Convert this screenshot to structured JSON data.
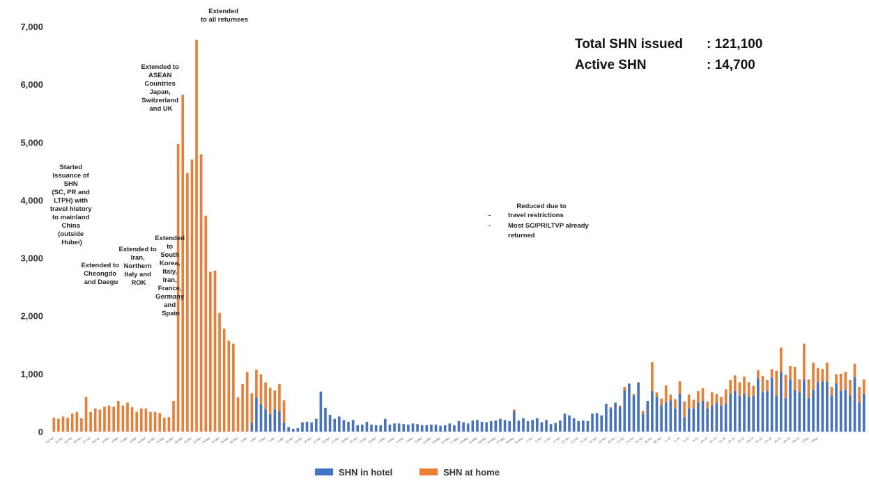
{
  "chart_data": {
    "type": "bar",
    "stacked": true,
    "ylim": [
      0,
      7000
    ],
    "yticks": [
      "0",
      "1,000",
      "2,000",
      "3,000",
      "4,000",
      "5,000",
      "6,000",
      "7,000"
    ],
    "grid": false,
    "legend_position": "bottom",
    "series": [
      {
        "name": "SHN in hotel",
        "color": "#4472c4",
        "values": [
          0,
          0,
          0,
          0,
          0,
          0,
          0,
          0,
          0,
          0,
          0,
          0,
          0,
          0,
          0,
          0,
          0,
          0,
          0,
          0,
          0,
          0,
          0,
          0,
          0,
          0,
          0,
          0,
          0,
          0,
          0,
          0,
          0,
          0,
          0,
          0,
          0,
          0,
          0,
          0,
          0,
          0,
          0,
          150,
          590,
          470,
          390,
          300,
          380,
          350,
          160,
          80,
          50,
          60,
          160,
          170,
          160,
          220,
          690,
          410,
          290,
          220,
          260,
          200,
          170,
          200,
          110,
          120,
          170,
          120,
          110,
          110,
          220,
          120,
          140,
          140,
          130,
          120,
          140,
          130,
          110,
          110,
          120,
          120,
          100,
          110,
          140,
          110,
          180,
          160,
          140,
          190,
          200,
          170,
          160,
          180,
          190,
          220,
          200,
          180,
          350,
          190,
          230,
          180,
          200,
          230,
          160,
          200,
          130,
          150,
          190,
          310,
          280,
          230,
          180,
          190,
          180,
          310,
          320,
          280,
          480,
          400,
          500,
          430,
          720,
          830,
          620,
          850,
          300,
          530,
          700,
          600,
          450,
          500,
          540,
          400,
          650,
          250,
          400,
          400,
          500,
          530,
          400,
          450,
          500,
          450,
          480,
          650,
          700,
          620,
          650,
          600,
          620,
          920,
          680,
          700,
          930,
          620,
          1030,
          580,
          900,
          720,
          680,
          900,
          580,
          720,
          850,
          870,
          860,
          620,
          830,
          700,
          730,
          630,
          940,
          500,
          650
        ]
      },
      {
        "name": "SHN at home",
        "color": "#ed7d31",
        "values": [
          240,
          220,
          260,
          240,
          310,
          340,
          230,
          600,
          340,
          400,
          380,
          430,
          450,
          430,
          530,
          450,
          500,
          420,
          340,
          400,
          400,
          340,
          340,
          320,
          240,
          250,
          530,
          4970,
          5820,
          4470,
          4700,
          6770,
          4790,
          3730,
          2760,
          2780,
          2050,
          1780,
          1570,
          1520,
          590,
          820,
          1030,
          510,
          480,
          520,
          460,
          460,
          330,
          470,
          380,
          0,
          0,
          0,
          0,
          0,
          0,
          0,
          0,
          0,
          0,
          0,
          0,
          0,
          0,
          0,
          0,
          0,
          0,
          0,
          0,
          0,
          0,
          0,
          0,
          0,
          0,
          0,
          0,
          0,
          0,
          0,
          0,
          0,
          0,
          0,
          0,
          0,
          0,
          0,
          0,
          0,
          0,
          0,
          0,
          0,
          0,
          0,
          0,
          0,
          30,
          0,
          0,
          0,
          0,
          0,
          0,
          0,
          0,
          0,
          0,
          0,
          0,
          0,
          0,
          0,
          0,
          0,
          0,
          0,
          0,
          20,
          0,
          20,
          50,
          0,
          30,
          0,
          60,
          0,
          500,
          80,
          120,
          300,
          100,
          160,
          220,
          270,
          240,
          150,
          200,
          220,
          120,
          230,
          150,
          150,
          250,
          240,
          270,
          230,
          300,
          250,
          170,
          140,
          280,
          190,
          150,
          430,
          420,
          400,
          230,
          400,
          220,
          620,
          320,
          470,
          250,
          210,
          330,
          150,
          160,
          300,
          300,
          260,
          230,
          270,
          250,
          510,
          290,
          250,
          320
        ]
      }
    ],
    "x_labels_shown": [
      "19-Feb",
      "21-Feb",
      "23-Feb",
      "25-Feb",
      "27-Feb",
      "29-Feb",
      "2-Mar",
      "4-Mar",
      "6-Mar",
      "8-Mar",
      "10-Mar",
      "12-Mar",
      "14-Mar",
      "16-Mar",
      "18-Mar",
      "20-Mar",
      "22-Mar",
      "24-Mar",
      "26-Mar",
      "28-Mar",
      "30-Mar",
      "1-Apr",
      "3-Apr",
      "5-Apr",
      "7-Apr",
      "9-Apr",
      "11-Apr",
      "13-Apr",
      "15-Apr",
      "17-Apr",
      "19-Apr",
      "21-Apr",
      "23-Apr",
      "25-Apr",
      "27-Apr",
      "29-Apr",
      "1-May",
      "3-May",
      "5-May",
      "7-May",
      "9-May",
      "11-May",
      "13-May",
      "15-May",
      "17-May",
      "19-May",
      "21-May",
      "23-May",
      "25-May",
      "27-May",
      "29-May",
      "31-May",
      "2-Jun",
      "4-Jun",
      "6-Jun",
      "8-Jun",
      "10-Jun",
      "12-Jun",
      "14-Jun",
      "16-Jun",
      "18-Jun",
      "20-Jun",
      "22-Jun",
      "24-Jun",
      "26-Jun",
      "28-Jun",
      "30-Jun",
      "2-Jul",
      "4-Jul",
      "6-Jul",
      "8-Jul",
      "10-Jul",
      "12-Jul",
      "14-Jul",
      "16-Jul",
      "18-Jul",
      "20-Jul",
      "22-Jul",
      "24-Jul",
      "26-Jul",
      "28-Jul",
      "30-Jul",
      "1-Aug",
      "3-Aug"
    ],
    "annotations": [
      {
        "id": "a1",
        "lines": [
          "Started",
          "Issuance of",
          "SHN",
          "(SC, PR and",
          "LTPH) with",
          "travel history",
          "to mainland",
          "China",
          "(outside",
          "Hubei)"
        ]
      },
      {
        "id": "a2",
        "lines": [
          "Extended to",
          "Cheongdo",
          "and Daegu"
        ]
      },
      {
        "id": "a3",
        "lines": [
          "Extended to",
          "Iran,",
          "Northern",
          "Italy and",
          "ROK"
        ]
      },
      {
        "id": "a4",
        "lines": [
          "Extended",
          "to",
          "South",
          "Korea,",
          "Italy,",
          "Iran,",
          "France,",
          "Germany",
          "and",
          "Spain"
        ]
      },
      {
        "id": "a5",
        "lines": [
          "Extended to",
          "ASEAN",
          "Countries",
          "Japan,",
          "Switzerland",
          "and UK"
        ]
      },
      {
        "id": "a6",
        "lines": [
          "Extended",
          "to all returnees"
        ]
      },
      {
        "id": "a7",
        "lines": [
          "Reduced due to",
          "travel restrictions",
          "Most SC/PR/LTVP already",
          "returned"
        ]
      }
    ],
    "stats": [
      {
        "label": "Total SHN issued",
        "value": ": 121,100"
      },
      {
        "label": "Active SHN",
        "value": ": 14,700"
      }
    ]
  }
}
